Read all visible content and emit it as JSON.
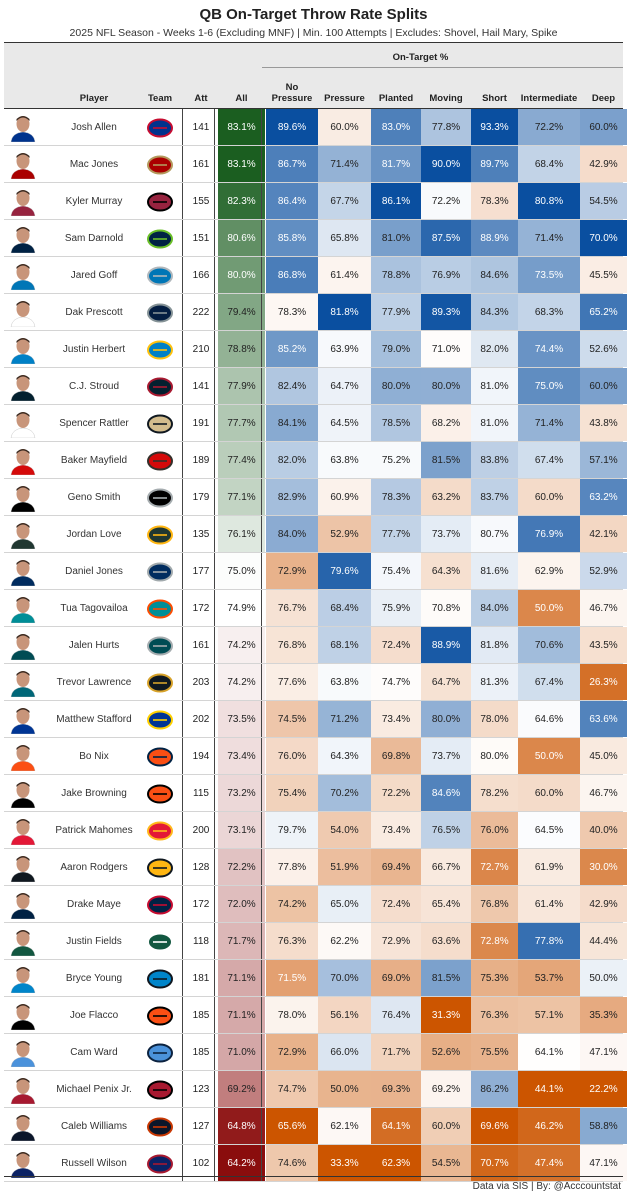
{
  "title": "QB On-Target Throw Rate Splits",
  "subtitle": "2025 NFL Season - Weeks 1-6 (Excluding MNF) | Min. 100 Attempts | Excludes: Shovel, Hail Mary, Spike",
  "group_label": "On-Target %",
  "footer": "Data via SIS | By: @Acccountstat",
  "colors": {
    "all_scale": [
      "#8a0d0d",
      "#ffffff",
      "#1b5e20"
    ],
    "split_scale": [
      "#cc5500",
      "#ffffff",
      "#0a4fa0"
    ],
    "header_bg": "#e9e9e9"
  },
  "chart_data": {
    "type": "table",
    "columns": [
      "Player",
      "Team",
      "Att",
      "All",
      "No Pressure",
      "Pressure",
      "Planted",
      "Moving",
      "Short",
      "Intermediate",
      "Deep"
    ],
    "column_labels": {
      "player": "Player",
      "team": "Team",
      "att": "Att",
      "all": "All",
      "no_pressure": "No\nPressure",
      "pressure": "Pressure",
      "planted": "Planted",
      "moving": "Moving",
      "short": "Short",
      "intermediate": "Intermediate",
      "deep": "Deep"
    },
    "rows": [
      {
        "player": "Josh Allen",
        "team": "BUF",
        "att": 141,
        "all": 83.1,
        "no_pressure": 89.6,
        "pressure": 60.0,
        "planted": 83.0,
        "moving": 77.8,
        "short": 93.3,
        "intermediate": 72.2,
        "deep": 60.0
      },
      {
        "player": "Mac Jones",
        "team": "SF",
        "att": 161,
        "all": 83.1,
        "no_pressure": 86.7,
        "pressure": 71.4,
        "planted": 81.7,
        "moving": 90.0,
        "short": 89.7,
        "intermediate": 68.4,
        "deep": 42.9
      },
      {
        "player": "Kyler Murray",
        "team": "ARI",
        "att": 155,
        "all": 82.3,
        "no_pressure": 86.4,
        "pressure": 67.7,
        "planted": 86.1,
        "moving": 72.2,
        "short": 78.3,
        "intermediate": 80.8,
        "deep": 54.5
      },
      {
        "player": "Sam Darnold",
        "team": "SEA",
        "att": 151,
        "all": 80.6,
        "no_pressure": 85.8,
        "pressure": 65.8,
        "planted": 81.0,
        "moving": 87.5,
        "short": 88.9,
        "intermediate": 71.4,
        "deep": 70.0
      },
      {
        "player": "Jared Goff",
        "team": "DET",
        "att": 166,
        "all": 80.0,
        "no_pressure": 86.8,
        "pressure": 61.4,
        "planted": 78.8,
        "moving": 76.9,
        "short": 84.6,
        "intermediate": 73.5,
        "deep": 45.5
      },
      {
        "player": "Dak Prescott",
        "team": "DAL",
        "att": 222,
        "all": 79.4,
        "no_pressure": 78.3,
        "pressure": 81.8,
        "planted": 77.9,
        "moving": 89.3,
        "short": 84.3,
        "intermediate": 68.3,
        "deep": 65.2
      },
      {
        "player": "Justin Herbert",
        "team": "LAC",
        "att": 210,
        "all": 78.8,
        "no_pressure": 85.2,
        "pressure": 63.9,
        "planted": 79.0,
        "moving": 71.0,
        "short": 82.0,
        "intermediate": 74.4,
        "deep": 52.6
      },
      {
        "player": "C.J. Stroud",
        "team": "HOU",
        "att": 141,
        "all": 77.9,
        "no_pressure": 82.4,
        "pressure": 64.7,
        "planted": 80.0,
        "moving": 80.0,
        "short": 81.0,
        "intermediate": 75.0,
        "deep": 60.0
      },
      {
        "player": "Spencer Rattler",
        "team": "NO",
        "att": 191,
        "all": 77.7,
        "no_pressure": 84.1,
        "pressure": 64.5,
        "planted": 78.5,
        "moving": 68.2,
        "short": 81.0,
        "intermediate": 71.4,
        "deep": 43.8
      },
      {
        "player": "Baker Mayfield",
        "team": "TB",
        "att": 189,
        "all": 77.4,
        "no_pressure": 82.0,
        "pressure": 63.8,
        "planted": 75.2,
        "moving": 81.5,
        "short": 83.8,
        "intermediate": 67.4,
        "deep": 57.1
      },
      {
        "player": "Geno Smith",
        "team": "LV",
        "att": 179,
        "all": 77.1,
        "no_pressure": 82.9,
        "pressure": 60.9,
        "planted": 78.3,
        "moving": 63.2,
        "short": 83.7,
        "intermediate": 60.0,
        "deep": 63.2
      },
      {
        "player": "Jordan Love",
        "team": "GB",
        "att": 135,
        "all": 76.1,
        "no_pressure": 84.0,
        "pressure": 52.9,
        "planted": 77.7,
        "moving": 73.7,
        "short": 80.7,
        "intermediate": 76.9,
        "deep": 42.1
      },
      {
        "player": "Daniel Jones",
        "team": "IND",
        "att": 177,
        "all": 75.0,
        "no_pressure": 72.9,
        "pressure": 79.6,
        "planted": 75.4,
        "moving": 64.3,
        "short": 81.6,
        "intermediate": 62.9,
        "deep": 52.9
      },
      {
        "player": "Tua Tagovailoa",
        "team": "MIA",
        "att": 172,
        "all": 74.9,
        "no_pressure": 76.7,
        "pressure": 68.4,
        "planted": 75.9,
        "moving": 70.8,
        "short": 84.0,
        "intermediate": 50.0,
        "deep": 46.7
      },
      {
        "player": "Jalen Hurts",
        "team": "PHI",
        "att": 161,
        "all": 74.2,
        "no_pressure": 76.8,
        "pressure": 68.1,
        "planted": 72.4,
        "moving": 88.9,
        "short": 81.8,
        "intermediate": 70.6,
        "deep": 43.5
      },
      {
        "player": "Trevor Lawrence",
        "team": "JAX",
        "att": 203,
        "all": 74.2,
        "no_pressure": 77.6,
        "pressure": 63.8,
        "planted": 74.7,
        "moving": 64.7,
        "short": 81.3,
        "intermediate": 67.4,
        "deep": 26.3
      },
      {
        "player": "Matthew Stafford",
        "team": "LAR",
        "att": 202,
        "all": 73.5,
        "no_pressure": 74.5,
        "pressure": 71.2,
        "planted": 73.4,
        "moving": 80.0,
        "short": 78.0,
        "intermediate": 64.6,
        "deep": 63.6
      },
      {
        "player": "Bo Nix",
        "team": "DEN",
        "att": 194,
        "all": 73.4,
        "no_pressure": 76.0,
        "pressure": 64.3,
        "planted": 69.8,
        "moving": 73.7,
        "short": 80.0,
        "intermediate": 50.0,
        "deep": 45.0
      },
      {
        "player": "Jake Browning",
        "team": "CIN",
        "att": 115,
        "all": 73.2,
        "no_pressure": 75.4,
        "pressure": 70.2,
        "planted": 72.2,
        "moving": 84.6,
        "short": 78.2,
        "intermediate": 60.0,
        "deep": 46.7
      },
      {
        "player": "Patrick Mahomes",
        "team": "KC",
        "att": 200,
        "all": 73.1,
        "no_pressure": 79.7,
        "pressure": 54.0,
        "planted": 73.4,
        "moving": 76.5,
        "short": 76.0,
        "intermediate": 64.5,
        "deep": 40.0
      },
      {
        "player": "Aaron Rodgers",
        "team": "PIT",
        "att": 128,
        "all": 72.2,
        "no_pressure": 77.8,
        "pressure": 51.9,
        "planted": 69.4,
        "moving": 66.7,
        "short": 72.7,
        "intermediate": 61.9,
        "deep": 30.0
      },
      {
        "player": "Drake Maye",
        "team": "NE",
        "att": 172,
        "all": 72.0,
        "no_pressure": 74.2,
        "pressure": 65.0,
        "planted": 72.4,
        "moving": 65.4,
        "short": 76.8,
        "intermediate": 61.4,
        "deep": 42.9
      },
      {
        "player": "Justin Fields",
        "team": "NYJ",
        "att": 118,
        "all": 71.7,
        "no_pressure": 76.3,
        "pressure": 62.2,
        "planted": 72.9,
        "moving": 63.6,
        "short": 72.8,
        "intermediate": 77.8,
        "deep": 44.4
      },
      {
        "player": "Bryce Young",
        "team": "CAR",
        "att": 181,
        "all": 71.1,
        "no_pressure": 71.5,
        "pressure": 70.0,
        "planted": 69.0,
        "moving": 81.5,
        "short": 75.3,
        "intermediate": 53.7,
        "deep": 50.0
      },
      {
        "player": "Joe Flacco",
        "team": "CIN",
        "att": 185,
        "all": 71.1,
        "no_pressure": 78.0,
        "pressure": 56.1,
        "planted": 76.4,
        "moving": 31.3,
        "short": 76.3,
        "intermediate": 57.1,
        "deep": 35.3
      },
      {
        "player": "Cam Ward",
        "team": "TEN",
        "att": 185,
        "all": 71.0,
        "no_pressure": 72.9,
        "pressure": 66.0,
        "planted": 71.7,
        "moving": 52.6,
        "short": 75.5,
        "intermediate": 64.1,
        "deep": 47.1
      },
      {
        "player": "Michael Penix Jr.",
        "team": "ATL",
        "att": 123,
        "all": 69.2,
        "no_pressure": 74.7,
        "pressure": 50.0,
        "planted": 69.3,
        "moving": 69.2,
        "short": 86.2,
        "intermediate": 44.1,
        "deep": 22.2
      },
      {
        "player": "Caleb Williams",
        "team": "CHI",
        "att": 127,
        "all": 64.8,
        "no_pressure": 65.6,
        "pressure": 62.1,
        "planted": 64.1,
        "moving": 60.0,
        "short": 69.6,
        "intermediate": 46.2,
        "deep": 58.8
      },
      {
        "player": "Russell Wilson",
        "team": "NYG",
        "att": 102,
        "all": 64.2,
        "no_pressure": 74.6,
        "pressure": 33.3,
        "planted": 62.3,
        "moving": 54.5,
        "short": 70.7,
        "intermediate": 47.4,
        "deep": 47.1
      }
    ]
  }
}
